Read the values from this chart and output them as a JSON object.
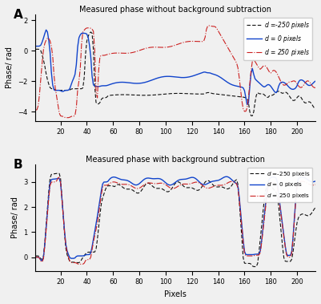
{
  "panelA_title": "Measured phase without background subtraction",
  "panelB_title": "Measured phase with background subtraction",
  "ylabel": "Phase/ rad",
  "xlabel": "Pixels",
  "panelA_ylim": [
    -4.6,
    2.4
  ],
  "panelB_ylim": [
    -0.55,
    3.7
  ],
  "panelA_yticks": [
    -4,
    -2,
    0,
    2
  ],
  "panelB_yticks": [
    0,
    1,
    2,
    3
  ],
  "xticks": [
    20,
    40,
    60,
    80,
    100,
    120,
    140,
    160,
    180,
    200
  ],
  "legend_labels": [
    "d =-250 pixels",
    "d = 0 pixels",
    "d = 250 pixels"
  ],
  "label_A": "A",
  "label_B": "B",
  "color_black": "#111111",
  "color_blue": "#1144cc",
  "color_red": "#cc2222",
  "bg_color": "#f0f0f0"
}
